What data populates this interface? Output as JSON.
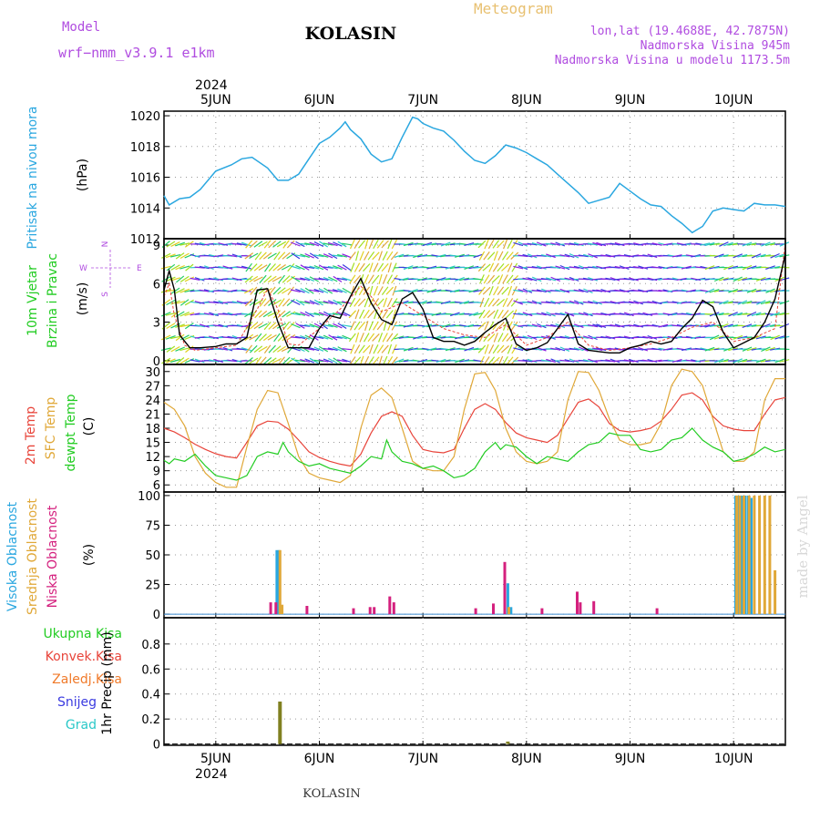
{
  "header": {
    "model_label": "Model",
    "model_name": "wrf−nmm_v3.9.1  e1km",
    "station": "KOLASIN",
    "meteogram_label": "Meteogram",
    "lonlat": "lon,lat (19.4688E, 42.7875N)",
    "elevation": "Nadmorska Visina 945m",
    "model_elevation": "Nadmorska Visina u modelu 1173.5m",
    "year_top": "2024",
    "year_bottom": "2024",
    "footer": "KOLASIN",
    "credit": "made by Angel"
  },
  "colors": {
    "pressure": "#2aa7e0",
    "wind_speed": "#000000",
    "wind_gust": "#e8443a",
    "temp2m": "#e8443a",
    "temp_sfc": "#e0a838",
    "dewpoint": "#22cc22",
    "cloud_high": "#2aa7e0",
    "cloud_mid": "#e0a838",
    "cloud_low": "#d4207e",
    "precip_total": "#22cc22",
    "precip_conv": "#e8443a",
    "precip_frozen": "#f07a2a",
    "precip_snow": "#3a3ae0",
    "precip_hail": "#2ac8c8",
    "precip_bar": "#808020",
    "title_purple": "#b04ce0",
    "meteogram_orange": "#e8c070",
    "credit_gray": "#d8d8d8"
  },
  "panel_labels": {
    "pressure": {
      "name": "Pritisak na nivou mora",
      "unit": "(hPa)"
    },
    "wind": {
      "name1": "10m  Vjetar",
      "name2": "Brzina  i Pravac",
      "unit": "(m/s)"
    },
    "compass": {
      "n": "N",
      "w": "W",
      "e": "E",
      "s": "S"
    },
    "temperature": {
      "name1": "2m Temp",
      "name2": "SFC Temp",
      "name3": "dewpt Temp",
      "unit": "(C)"
    },
    "cloud": {
      "name1": "Visoka Oblacnost",
      "name2": "Srednja Oblacnost",
      "name3": "Niska  Oblacnost",
      "unit": "(%)"
    },
    "precip": {
      "l1": "Ukupna  Kisa",
      "l2": "Konvek.Kisa",
      "l3": "Zaledj.Kisa",
      "l4": "Snijeg",
      "l5": "Grad",
      "unit": "1hr Precip (mm)"
    }
  },
  "chart_data": [
    {
      "type": "line",
      "panel": "pressure",
      "title": "Pritisak na nivou mora",
      "ylabel": "(hPa)",
      "x_days": [
        "5JUN",
        "6JUN",
        "7JUN",
        "8JUN",
        "9JUN",
        "10JUN"
      ],
      "xlim": [
        4.5,
        10.5
      ],
      "ylim": [
        1012,
        1020.3
      ],
      "yticks": [
        "1012",
        "1014",
        "1016",
        "1018",
        "1020"
      ],
      "series": [
        {
          "x": [
            4.5,
            4.55,
            4.65,
            4.75,
            4.85,
            5.0,
            5.15,
            5.25,
            5.35,
            5.5,
            5.6,
            5.7,
            5.8,
            5.9,
            6.0,
            6.1,
            6.2,
            6.25,
            6.3,
            6.4,
            6.5,
            6.6,
            6.7,
            6.8,
            6.9,
            6.95,
            7.0,
            7.1,
            7.2,
            7.3,
            7.4,
            7.5,
            7.6,
            7.7,
            7.8,
            7.9,
            8.0,
            8.1,
            8.2,
            8.3,
            8.4,
            8.5,
            8.6,
            8.7,
            8.8,
            8.9,
            9.0,
            9.1,
            9.2,
            9.3,
            9.4,
            9.5,
            9.6,
            9.7,
            9.8,
            9.9,
            10.0,
            10.1,
            10.2,
            10.3,
            10.4,
            10.5
          ],
          "y": [
            1014.8,
            1014.2,
            1014.6,
            1014.7,
            1015.2,
            1016.4,
            1016.8,
            1017.2,
            1017.3,
            1016.6,
            1015.8,
            1015.8,
            1016.2,
            1017.2,
            1018.2,
            1018.6,
            1019.2,
            1019.6,
            1019.1,
            1018.5,
            1017.5,
            1017.0,
            1017.2,
            1018.6,
            1019.9,
            1019.8,
            1019.5,
            1019.2,
            1019.0,
            1018.4,
            1017.7,
            1017.1,
            1016.9,
            1017.4,
            1018.1,
            1017.9,
            1017.6,
            1017.2,
            1016.8,
            1016.2,
            1015.6,
            1015.0,
            1014.3,
            1014.5,
            1014.7,
            1015.6,
            1015.1,
            1014.6,
            1014.2,
            1014.1,
            1013.5,
            1013.0,
            1012.4,
            1012.8,
            1013.8,
            1014.0,
            1013.9,
            1013.8,
            1014.3,
            1014.2,
            1014.2,
            1014.1
          ]
        }
      ]
    },
    {
      "type": "line",
      "panel": "wind",
      "title": "10m Vjetar Brzina i Pravac",
      "ylabel": "(m/s)",
      "xlim": [
        4.5,
        10.5
      ],
      "ylim": [
        -0.3,
        9.5
      ],
      "yticks": [
        "0",
        "3",
        "6",
        "9"
      ],
      "series": [
        {
          "name": "speed",
          "x": [
            4.5,
            4.55,
            4.6,
            4.65,
            4.75,
            4.85,
            5.0,
            5.1,
            5.2,
            5.3,
            5.4,
            5.5,
            5.6,
            5.7,
            5.8,
            5.9,
            6.0,
            6.1,
            6.2,
            6.3,
            6.4,
            6.5,
            6.6,
            6.7,
            6.8,
            6.9,
            7.0,
            7.1,
            7.2,
            7.3,
            7.4,
            7.5,
            7.6,
            7.7,
            7.8,
            7.9,
            8.0,
            8.1,
            8.2,
            8.3,
            8.4,
            8.5,
            8.6,
            8.7,
            8.8,
            8.9,
            9.0,
            9.1,
            9.2,
            9.3,
            9.4,
            9.5,
            9.6,
            9.7,
            9.8,
            9.9,
            10.0,
            10.1,
            10.2,
            10.3,
            10.4,
            10.5
          ],
          "y": [
            5.5,
            7.0,
            5.5,
            2.0,
            1.0,
            1.0,
            1.1,
            1.3,
            1.3,
            1.8,
            5.5,
            5.6,
            3.0,
            1.0,
            1.0,
            1.0,
            2.5,
            3.5,
            3.3,
            5.0,
            6.4,
            4.5,
            3.2,
            2.8,
            4.8,
            5.3,
            4.0,
            1.8,
            1.5,
            1.5,
            1.2,
            1.5,
            2.2,
            2.8,
            3.3,
            1.3,
            0.8,
            1.0,
            1.4,
            2.5,
            3.6,
            1.3,
            0.8,
            0.7,
            0.6,
            0.6,
            1.0,
            1.2,
            1.5,
            1.3,
            1.5,
            2.5,
            3.3,
            4.7,
            4.2,
            2.2,
            1.0,
            1.4,
            1.8,
            3.0,
            4.8,
            8.3
          ]
        },
        {
          "name": "gust",
          "x": [
            4.5,
            4.55,
            4.6,
            4.7,
            4.8,
            5.0,
            5.2,
            5.4,
            5.5,
            5.6,
            5.7,
            5.8,
            6.0,
            6.2,
            6.4,
            6.5,
            6.6,
            6.8,
            7.0,
            7.2,
            7.4,
            7.6,
            7.8,
            8.0,
            8.2,
            8.4,
            8.6,
            8.8,
            9.0,
            9.2,
            9.4,
            9.6,
            9.8,
            10.0,
            10.2,
            10.4,
            10.5
          ],
          "y": [
            5.0,
            6.0,
            3.5,
            1.2,
            0.8,
            1.0,
            1.2,
            4.0,
            5.6,
            4.0,
            1.3,
            1.2,
            2.5,
            4.0,
            5.8,
            5.0,
            3.8,
            4.5,
            3.5,
            2.5,
            2.0,
            1.8,
            2.8,
            1.2,
            1.8,
            3.0,
            1.2,
            0.8,
            1.0,
            1.3,
            1.8,
            2.6,
            3.0,
            1.5,
            1.8,
            2.5,
            9.2
          ]
        }
      ]
    },
    {
      "type": "line",
      "panel": "temperature",
      "title": "2m Temp / SFC Temp / dewpt Temp",
      "ylabel": "(C)",
      "xlim": [
        4.5,
        10.5
      ],
      "ylim": [
        4.5,
        31.5
      ],
      "yticks": [
        "6",
        "9",
        "12",
        "15",
        "18",
        "21",
        "24",
        "27",
        "30"
      ],
      "series": [
        {
          "name": "2m Temp",
          "x": [
            4.5,
            4.6,
            4.7,
            4.8,
            4.9,
            5.0,
            5.1,
            5.2,
            5.3,
            5.4,
            5.5,
            5.6,
            5.7,
            5.8,
            5.9,
            6.0,
            6.1,
            6.2,
            6.3,
            6.4,
            6.5,
            6.6,
            6.7,
            6.8,
            6.9,
            7.0,
            7.1,
            7.2,
            7.3,
            7.4,
            7.5,
            7.6,
            7.7,
            7.8,
            7.9,
            8.0,
            8.1,
            8.2,
            8.3,
            8.4,
            8.5,
            8.6,
            8.7,
            8.8,
            8.9,
            9.0,
            9.1,
            9.2,
            9.3,
            9.4,
            9.5,
            9.6,
            9.7,
            9.8,
            9.9,
            10.0,
            10.1,
            10.2,
            10.3,
            10.4,
            10.5
          ],
          "y": [
            18,
            17.2,
            16,
            14.6,
            13.5,
            12.6,
            12,
            11.7,
            15,
            18.5,
            19.5,
            19.3,
            17.8,
            15.5,
            13,
            11.8,
            11,
            10.4,
            10,
            12.5,
            17,
            20.5,
            21.5,
            20.5,
            16.5,
            13.5,
            13,
            12.8,
            13.5,
            18,
            22,
            23.2,
            22,
            19.2,
            17,
            16,
            15.5,
            15,
            16.5,
            20,
            23.5,
            24.2,
            22.5,
            19,
            17.5,
            17.2,
            17.5,
            18,
            19.5,
            22,
            25,
            25.5,
            24,
            20.5,
            18.5,
            17.8,
            17.5,
            17.5,
            21,
            24,
            24.5
          ]
        },
        {
          "name": "SFC Temp",
          "x": [
            4.5,
            4.6,
            4.7,
            4.8,
            4.9,
            5.0,
            5.1,
            5.2,
            5.3,
            5.4,
            5.5,
            5.6,
            5.7,
            5.8,
            5.9,
            6.0,
            6.1,
            6.2,
            6.3,
            6.4,
            6.5,
            6.6,
            6.7,
            6.8,
            6.9,
            7.0,
            7.1,
            7.2,
            7.3,
            7.4,
            7.5,
            7.6,
            7.7,
            7.8,
            7.9,
            8.0,
            8.1,
            8.2,
            8.3,
            8.4,
            8.5,
            8.6,
            8.7,
            8.8,
            8.9,
            9.0,
            9.1,
            9.2,
            9.3,
            9.4,
            9.5,
            9.6,
            9.7,
            9.8,
            9.9,
            10.0,
            10.1,
            10.2,
            10.3,
            10.4,
            10.5
          ],
          "y": [
            23.5,
            22,
            18.5,
            12,
            8.5,
            6.5,
            5.5,
            5.5,
            14,
            22,
            26,
            25.5,
            19,
            12,
            8.5,
            7.5,
            7,
            6.5,
            8,
            18,
            25,
            26.5,
            24.5,
            18,
            11,
            9.5,
            9,
            9,
            12,
            22,
            29.5,
            29.8,
            26,
            18,
            13,
            11,
            10.5,
            11,
            13,
            24,
            30,
            29.8,
            26,
            20,
            15.5,
            14.5,
            14.5,
            15,
            19,
            27,
            30.5,
            30,
            27,
            20,
            13,
            11,
            11,
            13,
            24,
            28.5,
            28.5
          ]
        },
        {
          "name": "dewpt Temp",
          "x": [
            4.5,
            4.55,
            4.6,
            4.7,
            4.8,
            4.9,
            5.0,
            5.1,
            5.2,
            5.3,
            5.4,
            5.5,
            5.6,
            5.65,
            5.7,
            5.8,
            5.9,
            6.0,
            6.1,
            6.2,
            6.3,
            6.4,
            6.5,
            6.6,
            6.65,
            6.7,
            6.8,
            6.9,
            7.0,
            7.1,
            7.2,
            7.3,
            7.4,
            7.5,
            7.6,
            7.7,
            7.75,
            7.8,
            7.9,
            8.0,
            8.1,
            8.2,
            8.3,
            8.4,
            8.5,
            8.6,
            8.7,
            8.8,
            8.9,
            9.0,
            9.1,
            9.2,
            9.3,
            9.4,
            9.5,
            9.6,
            9.7,
            9.8,
            9.9,
            10.0,
            10.1,
            10.2,
            10.3,
            10.4,
            10.5
          ],
          "y": [
            11.2,
            10.5,
            11.5,
            11.0,
            12.5,
            10.0,
            8.0,
            7.5,
            7.0,
            8.0,
            12.0,
            13.0,
            12.5,
            15.0,
            13.0,
            11.0,
            10.0,
            10.5,
            9.5,
            9.0,
            8.5,
            10.0,
            12.0,
            11.5,
            15.5,
            13.0,
            11.0,
            10.5,
            9.5,
            10.0,
            9.0,
            7.5,
            8.0,
            9.5,
            13.0,
            15.0,
            13.5,
            14.5,
            14.0,
            12.0,
            10.5,
            12.0,
            11.5,
            11.0,
            13.0,
            14.5,
            15.0,
            17.0,
            16.5,
            16.5,
            13.5,
            13.0,
            13.5,
            15.5,
            16.0,
            18.0,
            15.5,
            14.0,
            13.0,
            11.0,
            11.5,
            12.5,
            14.0,
            13.0,
            13.5
          ]
        }
      ]
    },
    {
      "type": "bar",
      "panel": "cloud",
      "title": "Visoka / Srednja / Niska Oblacnost",
      "ylabel": "(%)",
      "xlim": [
        4.5,
        10.5
      ],
      "ylim": [
        -3,
        103
      ],
      "yticks": [
        "0",
        "25",
        "50",
        "75",
        "100"
      ],
      "series": [
        {
          "name": "Visoka Oblacnost",
          "x": [
            5.59,
            5.61,
            7.82,
            7.85,
            10.02,
            10.05,
            10.08,
            10.11,
            10.14,
            10.17
          ],
          "values": [
            54,
            54,
            26,
            6,
            100,
            100,
            100,
            100,
            100,
            98
          ]
        },
        {
          "name": "Srednja Oblacnost",
          "x": [
            5.62,
            5.64,
            7.83,
            10.03,
            10.06,
            10.1,
            10.15,
            10.2,
            10.25,
            10.3,
            10.35,
            10.4
          ],
          "values": [
            54,
            8,
            6,
            100,
            100,
            100,
            100,
            100,
            100,
            100,
            100,
            37
          ]
        },
        {
          "name": "Niska Oblacnost",
          "x": [
            5.53,
            5.58,
            5.88,
            6.33,
            6.49,
            6.53,
            6.68,
            6.72,
            7.51,
            7.68,
            7.79,
            8.15,
            8.49,
            8.52,
            8.65,
            9.26
          ],
          "values": [
            10,
            10,
            7,
            5,
            6,
            6,
            15,
            10,
            5,
            9,
            44,
            5,
            19,
            10,
            11,
            5
          ]
        }
      ]
    },
    {
      "type": "bar",
      "panel": "precip",
      "title": "1hr Precip",
      "ylabel": "1hr Precip (mm)",
      "xlim": [
        4.5,
        10.5
      ],
      "ylim": [
        -0.01,
        1.01
      ],
      "yticks": [
        "0",
        "0.2",
        "0.4",
        "0.6",
        "0.8"
      ],
      "series": [
        {
          "name": "Ukupna Kisa",
          "x": [
            5.62,
            7.82
          ],
          "values": [
            0.34,
            0.02
          ]
        }
      ]
    }
  ]
}
